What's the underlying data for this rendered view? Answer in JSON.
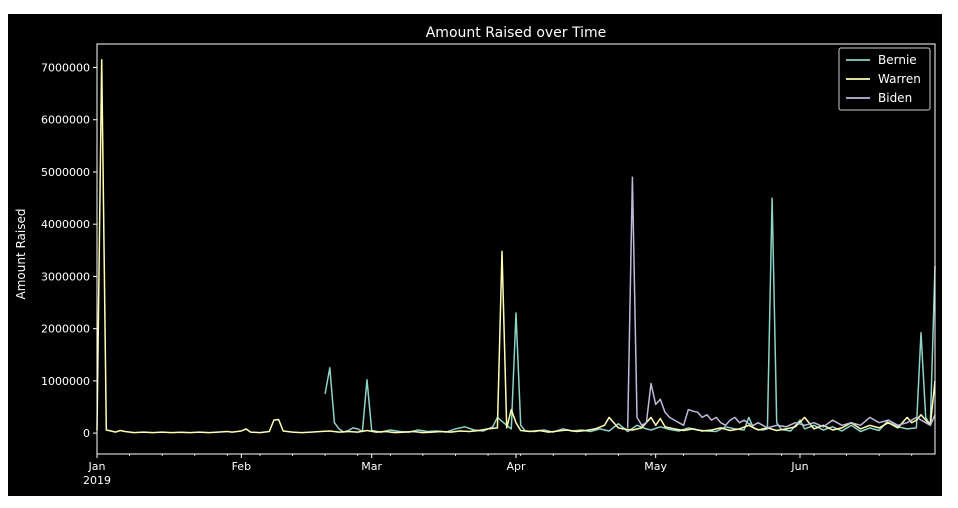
{
  "chart_data": {
    "type": "line",
    "title": "Amount Raised over Time",
    "xlabel": "",
    "ylabel": "Amount Raised",
    "x_range": [
      "2019-01-01",
      "2019-06-30"
    ],
    "ylim": [
      -400000,
      7450000
    ],
    "y_ticks": [
      0,
      1000000,
      2000000,
      3000000,
      4000000,
      5000000,
      6000000,
      7000000
    ],
    "y_tick_labels": [
      "0",
      "1000000",
      "2000000",
      "3000000",
      "4000000",
      "5000000",
      "6000000",
      "7000000"
    ],
    "x_ticks": [
      {
        "date": "2019-01-01",
        "label": "Jan",
        "sublabel": "2019"
      },
      {
        "date": "2019-02-01",
        "label": "Feb",
        "sublabel": ""
      },
      {
        "date": "2019-03-01",
        "label": "Mar",
        "sublabel": ""
      },
      {
        "date": "2019-04-01",
        "label": "Apr",
        "sublabel": ""
      },
      {
        "date": "2019-05-01",
        "label": "May",
        "sublabel": ""
      },
      {
        "date": "2019-06-01",
        "label": "Jun",
        "sublabel": ""
      }
    ],
    "grid": false,
    "legend": "top-right",
    "background": "#000000",
    "series": [
      {
        "name": "Bernie",
        "color": "#8dd3c7",
        "points": [
          [
            "2019-02-19",
            750000
          ],
          [
            "2019-02-20",
            1250000
          ],
          [
            "2019-02-21",
            200000
          ],
          [
            "2019-02-22",
            80000
          ],
          [
            "2019-02-23",
            20000
          ],
          [
            "2019-02-24",
            50000
          ],
          [
            "2019-02-25",
            100000
          ],
          [
            "2019-02-26",
            80000
          ],
          [
            "2019-02-27",
            30000
          ],
          [
            "2019-02-28",
            1020000
          ],
          [
            "2019-03-01",
            50000
          ],
          [
            "2019-03-03",
            20000
          ],
          [
            "2019-03-05",
            60000
          ],
          [
            "2019-03-07",
            30000
          ],
          [
            "2019-03-09",
            20000
          ],
          [
            "2019-03-11",
            60000
          ],
          [
            "2019-03-13",
            30000
          ],
          [
            "2019-03-15",
            40000
          ],
          [
            "2019-03-17",
            20000
          ],
          [
            "2019-03-19",
            80000
          ],
          [
            "2019-03-21",
            120000
          ],
          [
            "2019-03-23",
            60000
          ],
          [
            "2019-03-25",
            40000
          ],
          [
            "2019-03-27",
            120000
          ],
          [
            "2019-03-28",
            300000
          ],
          [
            "2019-03-30",
            150000
          ],
          [
            "2019-03-31",
            80000
          ],
          [
            "2019-04-01",
            2300000
          ],
          [
            "2019-04-02",
            150000
          ],
          [
            "2019-04-03",
            40000
          ],
          [
            "2019-04-05",
            30000
          ],
          [
            "2019-04-07",
            60000
          ],
          [
            "2019-04-09",
            20000
          ],
          [
            "2019-04-11",
            80000
          ],
          [
            "2019-04-13",
            40000
          ],
          [
            "2019-04-15",
            60000
          ],
          [
            "2019-04-17",
            30000
          ],
          [
            "2019-04-19",
            80000
          ],
          [
            "2019-04-21",
            40000
          ],
          [
            "2019-04-23",
            180000
          ],
          [
            "2019-04-25",
            30000
          ],
          [
            "2019-04-27",
            150000
          ],
          [
            "2019-04-29",
            80000
          ],
          [
            "2019-04-30",
            60000
          ],
          [
            "2019-05-02",
            120000
          ],
          [
            "2019-05-04",
            70000
          ],
          [
            "2019-05-06",
            40000
          ],
          [
            "2019-05-08",
            100000
          ],
          [
            "2019-05-10",
            60000
          ],
          [
            "2019-05-12",
            40000
          ],
          [
            "2019-05-14",
            30000
          ],
          [
            "2019-05-16",
            120000
          ],
          [
            "2019-05-18",
            80000
          ],
          [
            "2019-05-20",
            60000
          ],
          [
            "2019-05-21",
            300000
          ],
          [
            "2019-05-22",
            100000
          ],
          [
            "2019-05-23",
            70000
          ],
          [
            "2019-05-24",
            60000
          ],
          [
            "2019-05-25",
            80000
          ],
          [
            "2019-05-26",
            4500000
          ],
          [
            "2019-05-27",
            200000
          ],
          [
            "2019-05-28",
            70000
          ],
          [
            "2019-05-30",
            40000
          ],
          [
            "2019-06-01",
            250000
          ],
          [
            "2019-06-02",
            80000
          ],
          [
            "2019-06-04",
            150000
          ],
          [
            "2019-06-06",
            60000
          ],
          [
            "2019-06-08",
            120000
          ],
          [
            "2019-06-10",
            40000
          ],
          [
            "2019-06-12",
            150000
          ],
          [
            "2019-06-14",
            30000
          ],
          [
            "2019-06-16",
            100000
          ],
          [
            "2019-06-18",
            50000
          ],
          [
            "2019-06-20",
            250000
          ],
          [
            "2019-06-22",
            120000
          ],
          [
            "2019-06-24",
            80000
          ],
          [
            "2019-06-26",
            100000
          ],
          [
            "2019-06-27",
            1920000
          ],
          [
            "2019-06-28",
            300000
          ],
          [
            "2019-06-29",
            150000
          ],
          [
            "2019-06-30",
            3200000
          ]
        ]
      },
      {
        "name": "Warren",
        "color": "#ffffb3",
        "points": [
          [
            "2019-01-01",
            50000
          ],
          [
            "2019-01-02",
            7150000
          ],
          [
            "2019-01-03",
            60000
          ],
          [
            "2019-01-04",
            40000
          ],
          [
            "2019-01-05",
            20000
          ],
          [
            "2019-01-06",
            50000
          ],
          [
            "2019-01-07",
            30000
          ],
          [
            "2019-01-09",
            10000
          ],
          [
            "2019-01-11",
            20000
          ],
          [
            "2019-01-13",
            10000
          ],
          [
            "2019-01-15",
            20000
          ],
          [
            "2019-01-17",
            10000
          ],
          [
            "2019-01-19",
            15000
          ],
          [
            "2019-01-21",
            10000
          ],
          [
            "2019-01-23",
            20000
          ],
          [
            "2019-01-25",
            10000
          ],
          [
            "2019-01-27",
            20000
          ],
          [
            "2019-01-29",
            30000
          ],
          [
            "2019-01-30",
            20000
          ],
          [
            "2019-02-01",
            40000
          ],
          [
            "2019-02-02",
            80000
          ],
          [
            "2019-02-03",
            20000
          ],
          [
            "2019-02-05",
            10000
          ],
          [
            "2019-02-07",
            30000
          ],
          [
            "2019-02-08",
            250000
          ],
          [
            "2019-02-09",
            260000
          ],
          [
            "2019-02-10",
            40000
          ],
          [
            "2019-02-12",
            20000
          ],
          [
            "2019-02-14",
            10000
          ],
          [
            "2019-02-16",
            20000
          ],
          [
            "2019-02-18",
            30000
          ],
          [
            "2019-02-20",
            40000
          ],
          [
            "2019-02-22",
            20000
          ],
          [
            "2019-02-24",
            30000
          ],
          [
            "2019-02-26",
            20000
          ],
          [
            "2019-02-28",
            50000
          ],
          [
            "2019-03-02",
            20000
          ],
          [
            "2019-03-04",
            30000
          ],
          [
            "2019-03-06",
            10000
          ],
          [
            "2019-03-08",
            20000
          ],
          [
            "2019-03-10",
            30000
          ],
          [
            "2019-03-12",
            10000
          ],
          [
            "2019-03-14",
            20000
          ],
          [
            "2019-03-16",
            30000
          ],
          [
            "2019-03-18",
            20000
          ],
          [
            "2019-03-20",
            40000
          ],
          [
            "2019-03-22",
            30000
          ],
          [
            "2019-03-24",
            50000
          ],
          [
            "2019-03-26",
            80000
          ],
          [
            "2019-03-28",
            100000
          ],
          [
            "2019-03-29",
            3480000
          ],
          [
            "2019-03-30",
            100000
          ],
          [
            "2019-03-31",
            450000
          ],
          [
            "2019-04-01",
            200000
          ],
          [
            "2019-04-02",
            50000
          ],
          [
            "2019-04-04",
            30000
          ],
          [
            "2019-04-06",
            50000
          ],
          [
            "2019-04-08",
            20000
          ],
          [
            "2019-04-10",
            40000
          ],
          [
            "2019-04-12",
            60000
          ],
          [
            "2019-04-14",
            30000
          ],
          [
            "2019-04-16",
            50000
          ],
          [
            "2019-04-18",
            80000
          ],
          [
            "2019-04-20",
            150000
          ],
          [
            "2019-04-21",
            300000
          ],
          [
            "2019-04-22",
            200000
          ],
          [
            "2019-04-23",
            100000
          ],
          [
            "2019-04-24",
            80000
          ],
          [
            "2019-04-26",
            60000
          ],
          [
            "2019-04-28",
            100000
          ],
          [
            "2019-04-30",
            300000
          ],
          [
            "2019-05-01",
            150000
          ],
          [
            "2019-05-02",
            280000
          ],
          [
            "2019-05-03",
            120000
          ],
          [
            "2019-05-05",
            80000
          ],
          [
            "2019-05-07",
            50000
          ],
          [
            "2019-05-09",
            80000
          ],
          [
            "2019-05-11",
            40000
          ],
          [
            "2019-05-13",
            60000
          ],
          [
            "2019-05-15",
            100000
          ],
          [
            "2019-05-17",
            50000
          ],
          [
            "2019-05-19",
            80000
          ],
          [
            "2019-05-21",
            150000
          ],
          [
            "2019-05-23",
            60000
          ],
          [
            "2019-05-25",
            100000
          ],
          [
            "2019-05-27",
            50000
          ],
          [
            "2019-05-29",
            80000
          ],
          [
            "2019-05-31",
            120000
          ],
          [
            "2019-06-02",
            300000
          ],
          [
            "2019-06-04",
            80000
          ],
          [
            "2019-06-06",
            150000
          ],
          [
            "2019-06-08",
            60000
          ],
          [
            "2019-06-10",
            100000
          ],
          [
            "2019-06-12",
            200000
          ],
          [
            "2019-06-14",
            80000
          ],
          [
            "2019-06-16",
            150000
          ],
          [
            "2019-06-18",
            100000
          ],
          [
            "2019-06-20",
            200000
          ],
          [
            "2019-06-22",
            100000
          ],
          [
            "2019-06-24",
            300000
          ],
          [
            "2019-06-25",
            200000
          ],
          [
            "2019-06-26",
            250000
          ],
          [
            "2019-06-27",
            350000
          ],
          [
            "2019-06-28",
            250000
          ],
          [
            "2019-06-29",
            150000
          ],
          [
            "2019-06-30",
            1000000
          ]
        ]
      },
      {
        "name": "Biden",
        "color": "#bebada",
        "points": [
          [
            "2019-04-25",
            100000
          ],
          [
            "2019-04-26",
            4900000
          ],
          [
            "2019-04-27",
            300000
          ],
          [
            "2019-04-28",
            150000
          ],
          [
            "2019-04-29",
            200000
          ],
          [
            "2019-04-30",
            950000
          ],
          [
            "2019-05-01",
            550000
          ],
          [
            "2019-05-02",
            650000
          ],
          [
            "2019-05-03",
            400000
          ],
          [
            "2019-05-04",
            300000
          ],
          [
            "2019-05-05",
            250000
          ],
          [
            "2019-05-06",
            200000
          ],
          [
            "2019-05-07",
            150000
          ],
          [
            "2019-05-08",
            450000
          ],
          [
            "2019-05-09",
            420000
          ],
          [
            "2019-05-10",
            400000
          ],
          [
            "2019-05-11",
            300000
          ],
          [
            "2019-05-12",
            350000
          ],
          [
            "2019-05-13",
            250000
          ],
          [
            "2019-05-14",
            300000
          ],
          [
            "2019-05-15",
            200000
          ],
          [
            "2019-05-16",
            150000
          ],
          [
            "2019-05-17",
            250000
          ],
          [
            "2019-05-18",
            300000
          ],
          [
            "2019-05-19",
            200000
          ],
          [
            "2019-05-20",
            250000
          ],
          [
            "2019-05-21",
            180000
          ],
          [
            "2019-05-22",
            150000
          ],
          [
            "2019-05-23",
            200000
          ],
          [
            "2019-05-24",
            150000
          ],
          [
            "2019-05-25",
            100000
          ],
          [
            "2019-05-27",
            150000
          ],
          [
            "2019-05-29",
            120000
          ],
          [
            "2019-05-31",
            200000
          ],
          [
            "2019-06-02",
            150000
          ],
          [
            "2019-06-04",
            200000
          ],
          [
            "2019-06-06",
            120000
          ],
          [
            "2019-06-08",
            250000
          ],
          [
            "2019-06-10",
            150000
          ],
          [
            "2019-06-12",
            200000
          ],
          [
            "2019-06-14",
            150000
          ],
          [
            "2019-06-16",
            300000
          ],
          [
            "2019-06-18",
            200000
          ],
          [
            "2019-06-20",
            250000
          ],
          [
            "2019-06-22",
            150000
          ],
          [
            "2019-06-24",
            200000
          ],
          [
            "2019-06-26",
            300000
          ],
          [
            "2019-06-28",
            200000
          ],
          [
            "2019-06-29",
            150000
          ],
          [
            "2019-06-30",
            350000
          ]
        ]
      }
    ]
  }
}
